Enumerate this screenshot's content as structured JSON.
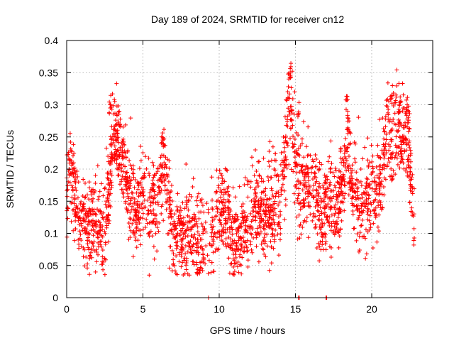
{
  "chart_data": {
    "type": "scatter",
    "title": "Day 189 of 2024, SRMTID for receiver cn12",
    "xlabel": "GPS time / hours",
    "ylabel": "SRMTID / TECUs",
    "xlim": [
      0,
      24
    ],
    "ylim": [
      0,
      0.4
    ],
    "xticks": [
      0,
      5,
      10,
      15,
      20
    ],
    "xtick_labels": [
      "0",
      "5",
      "10",
      "15",
      "20"
    ],
    "yticks": [
      0,
      0.05,
      0.1,
      0.15,
      0.2,
      0.25,
      0.3,
      0.35,
      0.4
    ],
    "ytick_labels": [
      "0",
      "0.05",
      "0.1",
      "0.15",
      "0.2",
      "0.25",
      "0.3",
      "0.35",
      "0.4"
    ],
    "grid": true,
    "marker": "+",
    "color": "#ff0000",
    "series": [
      {
        "name": "SRMTID",
        "x_range": [
          0.0,
          22.8
        ],
        "trend": [
          {
            "x": 0.0,
            "y": 0.16
          },
          {
            "x": 0.3,
            "y": 0.2
          },
          {
            "x": 0.6,
            "y": 0.14
          },
          {
            "x": 1.0,
            "y": 0.12
          },
          {
            "x": 1.5,
            "y": 0.11
          },
          {
            "x": 2.0,
            "y": 0.12
          },
          {
            "x": 2.5,
            "y": 0.1
          },
          {
            "x": 2.8,
            "y": 0.19
          },
          {
            "x": 3.1,
            "y": 0.27
          },
          {
            "x": 3.5,
            "y": 0.22
          },
          {
            "x": 4.0,
            "y": 0.17
          },
          {
            "x": 4.5,
            "y": 0.13
          },
          {
            "x": 5.0,
            "y": 0.16
          },
          {
            "x": 5.5,
            "y": 0.15
          },
          {
            "x": 6.0,
            "y": 0.14
          },
          {
            "x": 6.3,
            "y": 0.22
          },
          {
            "x": 6.6,
            "y": 0.16
          },
          {
            "x": 7.0,
            "y": 0.1
          },
          {
            "x": 7.5,
            "y": 0.09
          },
          {
            "x": 8.0,
            "y": 0.1
          },
          {
            "x": 8.5,
            "y": 0.08
          },
          {
            "x": 9.0,
            "y": 0.09
          },
          {
            "x": 9.5,
            "y": 0.11
          },
          {
            "x": 10.0,
            "y": 0.13
          },
          {
            "x": 10.5,
            "y": 0.14
          },
          {
            "x": 11.0,
            "y": 0.08
          },
          {
            "x": 11.5,
            "y": 0.09
          },
          {
            "x": 12.0,
            "y": 0.13
          },
          {
            "x": 12.5,
            "y": 0.15
          },
          {
            "x": 13.0,
            "y": 0.13
          },
          {
            "x": 13.5,
            "y": 0.14
          },
          {
            "x": 14.0,
            "y": 0.15
          },
          {
            "x": 14.3,
            "y": 0.21
          },
          {
            "x": 14.6,
            "y": 0.3
          },
          {
            "x": 14.9,
            "y": 0.24
          },
          {
            "x": 15.3,
            "y": 0.17
          },
          {
            "x": 15.8,
            "y": 0.18
          },
          {
            "x": 16.3,
            "y": 0.16
          },
          {
            "x": 16.7,
            "y": 0.12
          },
          {
            "x": 17.2,
            "y": 0.16
          },
          {
            "x": 17.7,
            "y": 0.13
          },
          {
            "x": 18.2,
            "y": 0.19
          },
          {
            "x": 18.4,
            "y": 0.25
          },
          {
            "x": 18.8,
            "y": 0.16
          },
          {
            "x": 19.3,
            "y": 0.14
          },
          {
            "x": 19.8,
            "y": 0.15
          },
          {
            "x": 20.3,
            "y": 0.16
          },
          {
            "x": 20.7,
            "y": 0.2
          },
          {
            "x": 21.0,
            "y": 0.25
          },
          {
            "x": 21.3,
            "y": 0.23
          },
          {
            "x": 21.6,
            "y": 0.27
          },
          {
            "x": 22.0,
            "y": 0.24
          },
          {
            "x": 22.3,
            "y": 0.26
          },
          {
            "x": 22.6,
            "y": 0.18
          },
          {
            "x": 22.8,
            "y": 0.09
          }
        ],
        "spread": 0.035,
        "peaks": [
          {
            "x": 2.9,
            "y": 0.315
          },
          {
            "x": 3.4,
            "y": 0.3
          },
          {
            "x": 6.3,
            "y": 0.25
          },
          {
            "x": 14.7,
            "y": 0.368
          },
          {
            "x": 14.6,
            "y": 0.355
          },
          {
            "x": 15.2,
            "y": 0.31
          },
          {
            "x": 18.4,
            "y": 0.322
          },
          {
            "x": 21.3,
            "y": 0.33
          },
          {
            "x": 21.8,
            "y": 0.31
          },
          {
            "x": 22.4,
            "y": 0.305
          }
        ],
        "zero_points": [
          {
            "x": 9.3,
            "y": 0.0
          },
          {
            "x": 15.2,
            "y": 0.0
          },
          {
            "x": 15.25,
            "y": 0.0
          },
          {
            "x": 17.0,
            "y": 0.0
          },
          {
            "x": 17.05,
            "y": 0.0
          }
        ],
        "point_count": 2600
      }
    ]
  }
}
